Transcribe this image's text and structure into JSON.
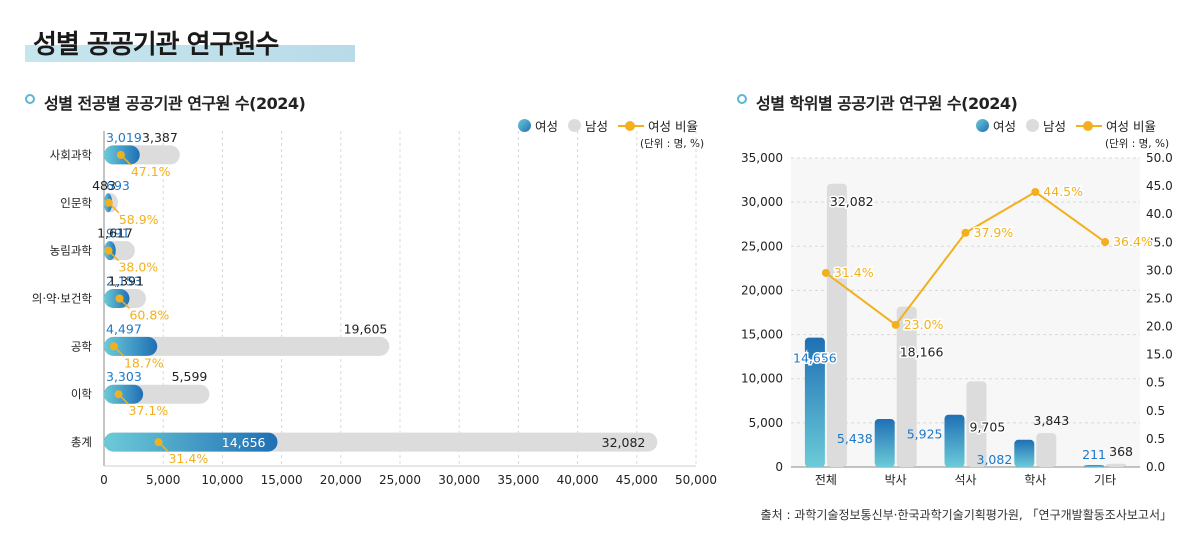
{
  "page_title": "성별 공공기관 연구원수",
  "source": "출처 : 과학기술정보통신부·한국과학기술기획평가원, 「연구개발활동조사보고서」",
  "colors": {
    "female_top": "#6ccbd8",
    "female_bottom": "#1f6fb4",
    "male": "#dcdcdc",
    "ratio": "#f2b01e",
    "female_label": "#1e78c8"
  },
  "legend": {
    "female": "여성",
    "male": "남성",
    "ratio": "여성 비율"
  },
  "chart_data": [
    {
      "type": "bar",
      "orientation": "horizontal",
      "title": "성별 전공별 공공기관 연구원 수(2024)",
      "unit": "(단위 : 명, %)",
      "categories": [
        "사회과학",
        "인문학",
        "농림과학",
        "의·약·보건학",
        "공학",
        "이학",
        "총계"
      ],
      "series": [
        {
          "name": "여성",
          "values": [
            3019,
            693,
            991,
            2153,
            4497,
            3303,
            14656
          ]
        },
        {
          "name": "남성",
          "values": [
            3387,
            483,
            1617,
            1391,
            19605,
            5599,
            32082
          ]
        },
        {
          "name": "여성 비율",
          "values": [
            47.1,
            58.9,
            38.0,
            60.8,
            18.7,
            37.1,
            31.4
          ]
        }
      ],
      "value_labels": {
        "female": [
          "3,019",
          "693",
          "991",
          "2,153",
          "4,497",
          "3,303",
          "14,656"
        ],
        "male": [
          "3,387",
          "483",
          "1,617",
          "1,391",
          "19,605",
          "5,599",
          "32,082"
        ],
        "ratio": [
          "47.1%",
          "58.9%",
          "38.0%",
          "60.8%",
          "18.7%",
          "37.1%",
          "31.4%"
        ]
      },
      "xlim": [
        0,
        50000
      ],
      "x_ticks": [
        "0",
        "5,000",
        "10,000",
        "15,000",
        "20,000",
        "25,000",
        "30,000",
        "35,000",
        "40,000",
        "45,000",
        "50,000"
      ],
      "grid": true,
      "legend_position": "top-right"
    },
    {
      "type": "bar",
      "orientation": "vertical",
      "title": "성별 학위별 공공기관 연구원 수(2024)",
      "unit": "(단위 : 명, %)",
      "categories": [
        "전체",
        "박사",
        "석사",
        "학사",
        "기타"
      ],
      "series": [
        {
          "name": "여성",
          "values": [
            14656,
            5438,
            5925,
            3082,
            211
          ]
        },
        {
          "name": "남성",
          "values": [
            32082,
            18166,
            9705,
            3843,
            368
          ]
        },
        {
          "name": "여성 비율",
          "values": [
            31.4,
            23.0,
            37.9,
            44.5,
            36.4
          ]
        }
      ],
      "value_labels": {
        "female": [
          "14,656",
          "5,438",
          "5,925",
          "3,082",
          "211"
        ],
        "male": [
          "32,082",
          "18,166",
          "9,705",
          "3,843",
          "368"
        ],
        "ratio": [
          "31.4%",
          "23.0%",
          "37.9%",
          "44.5%",
          "36.4%"
        ]
      },
      "ylim": [
        0,
        35000
      ],
      "y_ticks": [
        "0",
        "5,000",
        "10,000",
        "15,000",
        "20,000",
        "25,000",
        "30,000",
        "35,000"
      ],
      "y2lim": [
        0,
        50
      ],
      "y2_ticks": [
        "0.0",
        "0.5",
        "0.5",
        "0.5",
        "15.0",
        "20.0",
        "25.0",
        "30.0",
        "35.0",
        "40.0",
        "45.0",
        "50.0"
      ],
      "grid": true,
      "legend_position": "top-right"
    }
  ]
}
